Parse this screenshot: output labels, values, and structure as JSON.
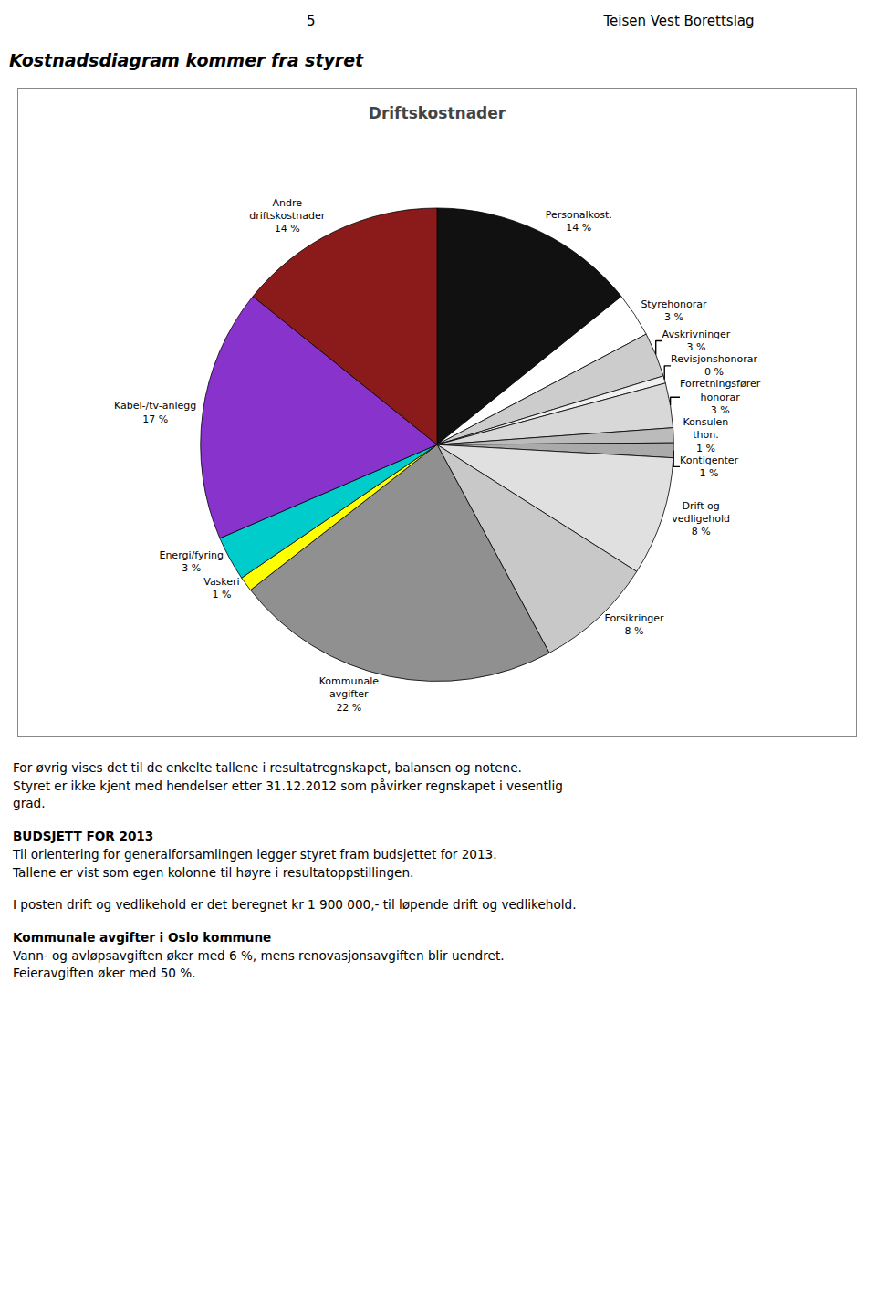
{
  "page_header": {
    "page_num": "5",
    "org_name": "Teisen Vest Borettslag"
  },
  "heading": "Kostnadsdiagram kommer fra styret",
  "chart_data": {
    "type": "pie",
    "title": "Driftskostnader",
    "categories": [
      "Personalkost.\n14 %",
      "Styrehonorar\n3 %",
      "Avskrivninger\n3 %",
      "Revisjonshonorar\n0 %",
      "Forretningsfører\nhonorar\n3 %",
      "Konsulen\nthon.\n1 %",
      "Kontigenter\n1 %",
      "Drift og\nvedligehold\n8 %",
      "Forsikringer\n8 %",
      "Kommunale\navgifter\n22 %",
      "Vaskeri\n1 %",
      "Energi/fyring\n3 %",
      "Kabel-/tv-anlegg\n17 %",
      "Andre\ndriftskostnader\n14 %"
    ],
    "values": [
      14,
      3,
      3,
      0.5,
      3,
      1,
      1,
      8,
      8,
      22,
      1,
      3,
      17,
      14
    ],
    "colors": [
      "#111111",
      "#ffffff",
      "#cccccc",
      "#f0f0f0",
      "#d8d8d8",
      "#bbbbbb",
      "#aaaaaa",
      "#e0e0e0",
      "#c8c8c8",
      "#909090",
      "#ffff00",
      "#00cccc",
      "#8833cc",
      "#8b1a1a"
    ],
    "data_labels": true
  },
  "paragraphs": [
    {
      "text": "For øvrig vises det til de enkelte tallene i resultatregnskapet, balansen og notene.\nStyret er ikke kjent med hendelser etter 31.12.2012 som påvirker regnskapet i vesentlig\ngrad."
    },
    {
      "heading": "BUDSJETT FOR 2013",
      "text": "Til orientering for generalforsamlingen legger styret fram budsjettet for 2013.\nTallene er vist som egen kolonne til høyre i resultatoppstillingen."
    },
    {
      "text": "I posten drift og vedlikehold er det beregnet kr 1 900 000,- til løpende drift og vedlikehold."
    },
    {
      "heading": "Kommunale avgifter i Oslo kommune",
      "text": "Vann- og avløpsavgiften øker med 6 %, mens renovasjonsavgiften blir uendret.\nFeieravgiften øker med 50 %."
    }
  ]
}
